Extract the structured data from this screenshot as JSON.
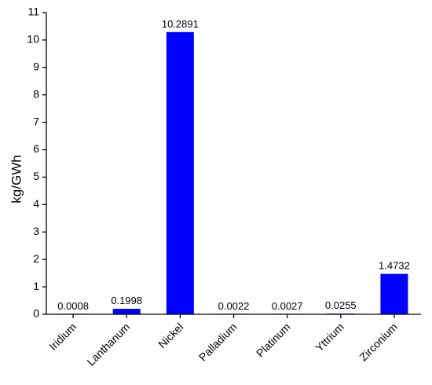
{
  "chart_data": {
    "type": "bar",
    "categories": [
      "Iridium",
      "Lanthanum",
      "Nickel",
      "Palladium",
      "Platinum",
      "Yttrium",
      "Zirconium"
    ],
    "values": [
      0.0008,
      0.1998,
      10.2891,
      0.0022,
      0.0027,
      0.0255,
      1.4732
    ],
    "data_labels": [
      "0.0008",
      "0.1998",
      "10.2891",
      "0.0022",
      "0.0027",
      "0.0255",
      "1.4732"
    ],
    "title": "",
    "xlabel": "",
    "ylabel": "kg/GWh",
    "ylim": [
      0,
      11
    ],
    "yticks": [
      0,
      1,
      2,
      3,
      4,
      5,
      6,
      7,
      8,
      9,
      10,
      11
    ],
    "bar_color": "#0000ff",
    "grid": false,
    "legend": "none"
  }
}
